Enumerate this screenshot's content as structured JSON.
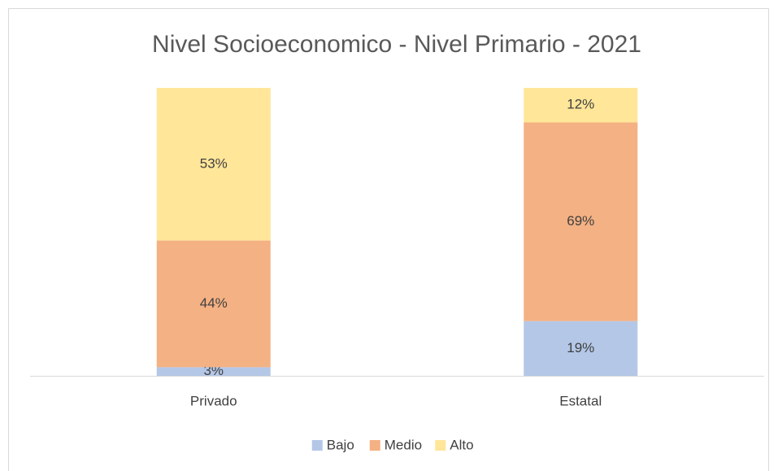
{
  "chart_data": {
    "type": "stacked_bar",
    "title": "Nivel Socioeconomico - Nivel Primario - 2021",
    "categories": [
      "Privado",
      "Estatal"
    ],
    "series": [
      {
        "name": "Bajo",
        "color": "#b4c7e7",
        "values": [
          3,
          19
        ],
        "value_labels": [
          "3%",
          "19%"
        ]
      },
      {
        "name": "Medio",
        "color": "#f4b183",
        "values": [
          44,
          69
        ],
        "value_labels": [
          "44%",
          "69%"
        ]
      },
      {
        "name": "Alto",
        "color": "#ffe699",
        "values": [
          53,
          12
        ],
        "value_labels": [
          "53%",
          "12%"
        ]
      }
    ],
    "ylim": [
      0,
      100
    ],
    "legend": "bottom"
  }
}
